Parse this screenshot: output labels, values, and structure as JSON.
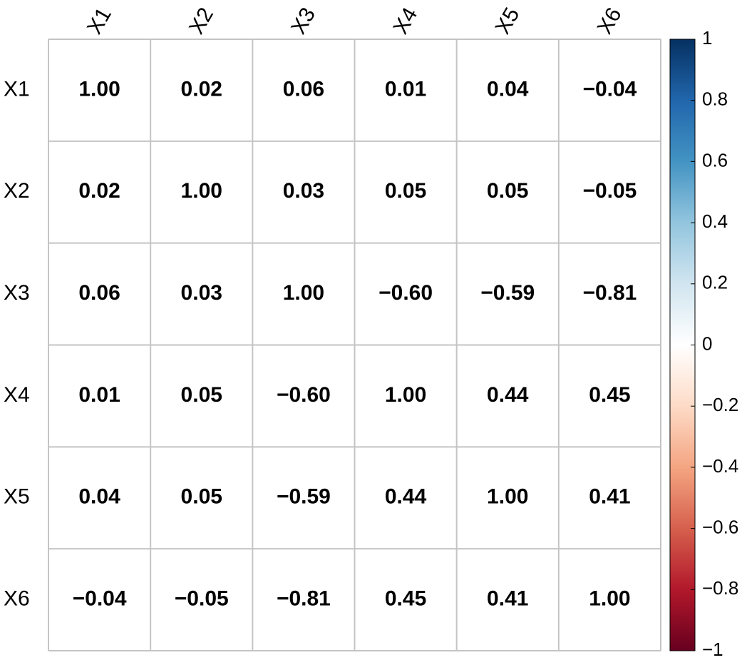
{
  "chart_data": {
    "type": "corrplot",
    "categories": [
      "X1",
      "X2",
      "X3",
      "X4",
      "X5",
      "X6"
    ],
    "values": [
      [
        1,
        0.02,
        0.06,
        0.01,
        0.04,
        -0.04
      ],
      [
        0.02,
        1,
        0.03,
        0.05,
        0.05,
        -0.05
      ],
      [
        0.06,
        0.03,
        1,
        -0.6,
        -0.59,
        -0.81
      ],
      [
        0.01,
        0.05,
        -0.6,
        1,
        0.44,
        0.45
      ],
      [
        0.04,
        0.05,
        -0.59,
        0.44,
        1,
        0.41
      ],
      [
        -0.04,
        -0.05,
        -0.81,
        0.45,
        0.41,
        1
      ]
    ],
    "value_labels": [
      [
        "1.00",
        "0.02",
        "0.06",
        "0.01",
        "0.04",
        "−0.04"
      ],
      [
        "0.02",
        "1.00",
        "0.03",
        "0.05",
        "0.05",
        "−0.05"
      ],
      [
        "0.06",
        "0.03",
        "1.00",
        "−0.60",
        "−0.59",
        "−0.81"
      ],
      [
        "0.01",
        "0.05",
        "−0.60",
        "1.00",
        "0.44",
        "0.45"
      ],
      [
        "0.04",
        "0.05",
        "−0.59",
        "0.44",
        "1.00",
        "0.41"
      ],
      [
        "−0.04",
        "−0.05",
        "−0.81",
        "0.45",
        "0.41",
        "1.00"
      ]
    ],
    "colors": [
      "#67001F",
      "#B2182B",
      "#D6604D",
      "#F4A582",
      "#FDDBC7",
      "#FFFFFF",
      "#D1E5F0",
      "#92C5DE",
      "#4393C3",
      "#2166AC",
      "#053061"
    ],
    "zlim": [
      -1,
      1
    ],
    "zticks": [
      1,
      0.8,
      0.6,
      0.4,
      0.2,
      0,
      {
        "value": -0.2,
        "label": "−0.2"
      },
      {
        "value": -0.4,
        "label": "−0.4"
      },
      {
        "value": -0.6,
        "label": "−0.6"
      },
      {
        "value": -0.8,
        "label": "−0.8"
      },
      {
        "value": -1,
        "label": "−1"
      }
    ]
  }
}
